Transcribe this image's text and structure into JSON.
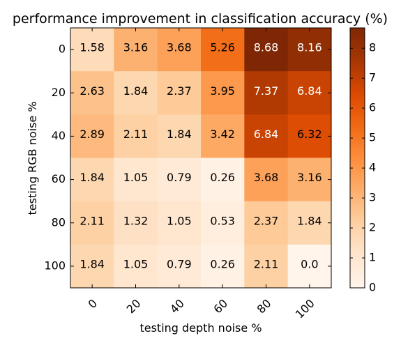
{
  "chart_data": {
    "type": "heatmap",
    "title": "performance improvement in classification accuracy (%)",
    "xlabel": "testing depth noise %",
    "ylabel": "testing RGB noise %",
    "x_categories": [
      "0",
      "20",
      "40",
      "60",
      "80",
      "100"
    ],
    "y_categories": [
      "0",
      "20",
      "40",
      "60",
      "80",
      "100"
    ],
    "values": [
      [
        1.58,
        3.16,
        3.68,
        5.26,
        8.68,
        8.16
      ],
      [
        2.63,
        1.84,
        2.37,
        3.95,
        7.37,
        6.84
      ],
      [
        2.89,
        2.11,
        1.84,
        3.42,
        6.84,
        6.32
      ],
      [
        1.84,
        1.05,
        0.79,
        0.26,
        3.68,
        3.16
      ],
      [
        2.11,
        1.32,
        1.05,
        0.53,
        2.37,
        1.84
      ],
      [
        1.84,
        1.05,
        0.79,
        0.26,
        2.11,
        0.0
      ]
    ],
    "cell_labels": [
      [
        "1.58",
        "3.16",
        "3.68",
        "5.26",
        "8.68",
        "8.16"
      ],
      [
        "2.63",
        "1.84",
        "2.37",
        "3.95",
        "7.37",
        "6.84"
      ],
      [
        "2.89",
        "2.11",
        "1.84",
        "3.42",
        "6.84",
        "6.32"
      ],
      [
        "1.84",
        "1.05",
        "0.79",
        "0.26",
        "3.68",
        "3.16"
      ],
      [
        "2.11",
        "1.32",
        "1.05",
        "0.53",
        "2.37",
        "1.84"
      ],
      [
        "1.84",
        "1.05",
        "0.79",
        "0.26",
        "2.11",
        "0.0"
      ]
    ],
    "colormap": "Oranges",
    "vmin": 0,
    "vmax": 8.68,
    "colorbar_ticks": [
      0,
      1,
      2,
      3,
      4,
      5,
      6,
      7,
      8
    ],
    "colorbar_tick_labels": [
      "0",
      "1",
      "2",
      "3",
      "4",
      "5",
      "6",
      "7",
      "8"
    ],
    "grid": false
  }
}
